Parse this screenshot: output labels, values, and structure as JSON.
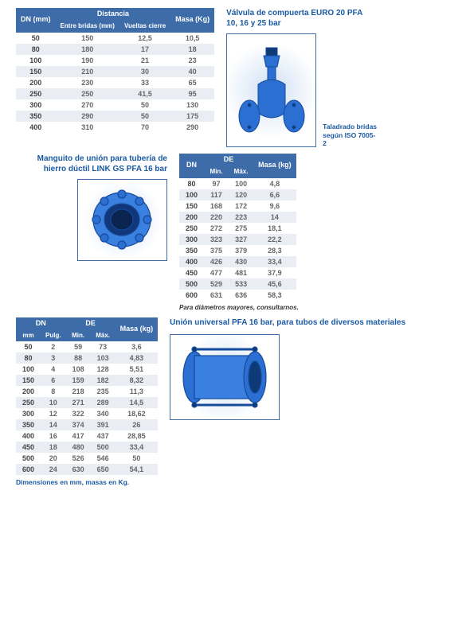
{
  "table1": {
    "headers": {
      "dn": "DN (mm)",
      "group": "Distancia",
      "entre": "Entre bridas (mm)",
      "vueltas": "Vueltas cierre",
      "masa": "Masa (Kg)"
    },
    "rows": [
      {
        "dn": "50",
        "entre": "150",
        "vueltas": "12,5",
        "masa": "10,5"
      },
      {
        "dn": "80",
        "entre": "180",
        "vueltas": "17",
        "masa": "18"
      },
      {
        "dn": "100",
        "entre": "190",
        "vueltas": "21",
        "masa": "23"
      },
      {
        "dn": "150",
        "entre": "210",
        "vueltas": "30",
        "masa": "40"
      },
      {
        "dn": "200",
        "entre": "230",
        "vueltas": "33",
        "masa": "65"
      },
      {
        "dn": "250",
        "entre": "250",
        "vueltas": "41,5",
        "masa": "95"
      },
      {
        "dn": "300",
        "entre": "270",
        "vueltas": "50",
        "masa": "130"
      },
      {
        "dn": "350",
        "entre": "290",
        "vueltas": "50",
        "masa": "175"
      },
      {
        "dn": "400",
        "entre": "310",
        "vueltas": "70",
        "masa": "290"
      }
    ]
  },
  "product1": {
    "title": "Válvula de compuerta EURO 20 PFA 10, 16 y 25 bar",
    "caption": "Taladrado bridas según ISO 7005-2"
  },
  "product2": {
    "title": "Manguito de unión para tubería de hierro dúctil LINK GS PFA 16 bar"
  },
  "table2": {
    "headers": {
      "dn": "DN",
      "de": "DE",
      "min": "Min.",
      "max": "Máx.",
      "masa": "Masa (kg)"
    },
    "rows": [
      {
        "dn": "80",
        "min": "97",
        "max": "100",
        "masa": "4,8"
      },
      {
        "dn": "100",
        "min": "117",
        "max": "120",
        "masa": "6,6"
      },
      {
        "dn": "150",
        "min": "168",
        "max": "172",
        "masa": "9,6"
      },
      {
        "dn": "200",
        "min": "220",
        "max": "223",
        "masa": "14"
      },
      {
        "dn": "250",
        "min": "272",
        "max": "275",
        "masa": "18,1"
      },
      {
        "dn": "300",
        "min": "323",
        "max": "327",
        "masa": "22,2"
      },
      {
        "dn": "350",
        "min": "375",
        "max": "379",
        "masa": "28,3"
      },
      {
        "dn": "400",
        "min": "426",
        "max": "430",
        "masa": "33,4"
      },
      {
        "dn": "450",
        "min": "477",
        "max": "481",
        "masa": "37,9"
      },
      {
        "dn": "500",
        "min": "529",
        "max": "533",
        "masa": "45,6"
      },
      {
        "dn": "600",
        "min": "631",
        "max": "636",
        "masa": "58,3"
      }
    ],
    "note": "Para diámetros mayores, consultarnos."
  },
  "table3": {
    "headers": {
      "dn": "DN",
      "mm": "mm",
      "pulg": "Pulg.",
      "de": "DE",
      "min": "Min.",
      "max": "Máx.",
      "masa": "Masa (kg)"
    },
    "rows": [
      {
        "mm": "50",
        "pulg": "2",
        "min": "59",
        "max": "73",
        "masa": "3,6"
      },
      {
        "mm": "80",
        "pulg": "3",
        "min": "88",
        "max": "103",
        "masa": "4,83"
      },
      {
        "mm": "100",
        "pulg": "4",
        "min": "108",
        "max": "128",
        "masa": "5,51"
      },
      {
        "mm": "150",
        "pulg": "6",
        "min": "159",
        "max": "182",
        "masa": "8,32"
      },
      {
        "mm": "200",
        "pulg": "8",
        "min": "218",
        "max": "235",
        "masa": "11,3"
      },
      {
        "mm": "250",
        "pulg": "10",
        "min": "271",
        "max": "289",
        "masa": "14,5"
      },
      {
        "mm": "300",
        "pulg": "12",
        "min": "322",
        "max": "340",
        "masa": "18,62"
      },
      {
        "mm": "350",
        "pulg": "14",
        "min": "374",
        "max": "391",
        "masa": "26"
      },
      {
        "mm": "400",
        "pulg": "16",
        "min": "417",
        "max": "437",
        "masa": "28,85"
      },
      {
        "mm": "450",
        "pulg": "18",
        "min": "480",
        "max": "500",
        "masa": "33,4"
      },
      {
        "mm": "500",
        "pulg": "20",
        "min": "526",
        "max": "546",
        "masa": "50"
      },
      {
        "mm": "600",
        "pulg": "24",
        "min": "630",
        "max": "650",
        "masa": "54,1"
      }
    ]
  },
  "product3": {
    "title": "Unión universal PFA 16 bar, para tubos de diversos materiales"
  },
  "footer": "Dimensiones en mm, masas en Kg.",
  "style": {
    "brand_blue": "#1a5aa3",
    "header_bg": "#3d6ca9",
    "row_alt_bg": "#eaeef4",
    "text_color": "#666",
    "title_fontsize": 10,
    "body_fontsize": 9,
    "valve_fill": "#2a6fd1",
    "valve_dark": "#154a9a"
  }
}
